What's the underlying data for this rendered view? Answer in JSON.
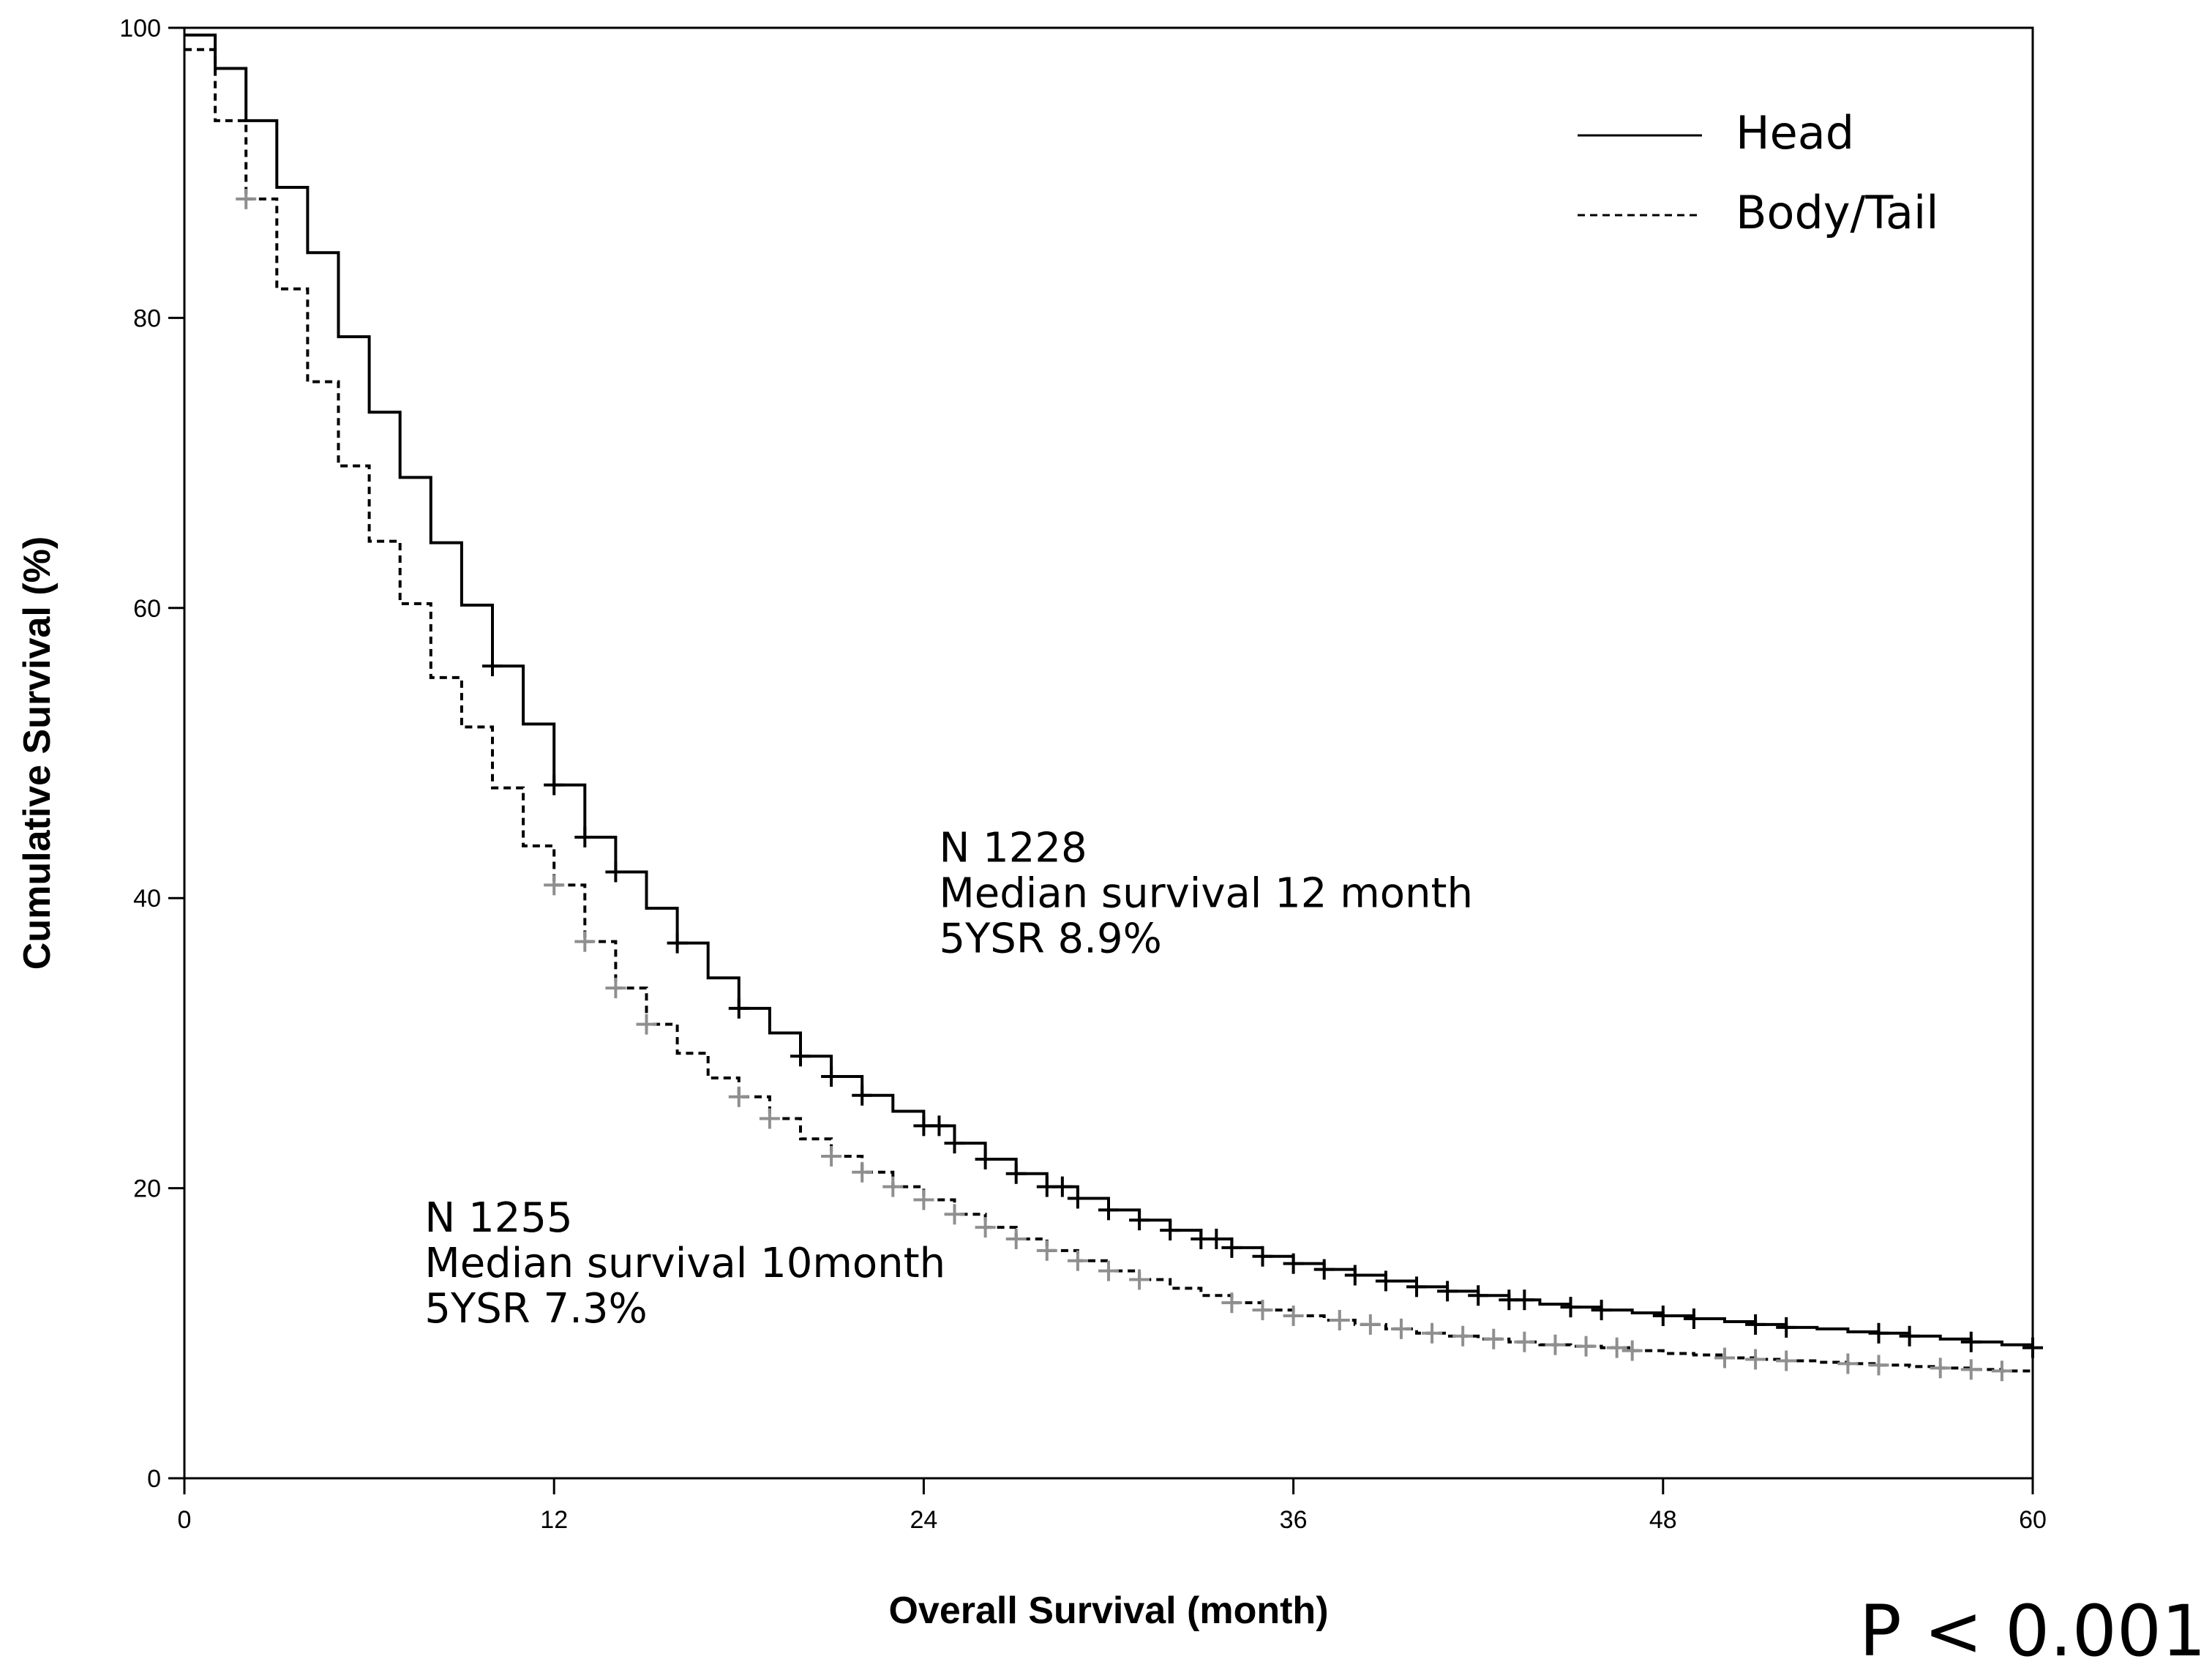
{
  "chart_data": {
    "type": "line",
    "title": "",
    "xlabel": "Overall Survival (month)",
    "ylabel": "Cumulative Survival (%)",
    "xlim": [
      0,
      60
    ],
    "ylim": [
      0,
      100
    ],
    "xticks": [
      "0",
      "12",
      "24",
      "36",
      "48",
      "60"
    ],
    "yticks": [
      "0",
      "20",
      "40",
      "60",
      "80",
      "100"
    ],
    "grid": false,
    "legend_position": "top-right",
    "series": [
      {
        "name": "Head",
        "style": "solid",
        "color": "#000000",
        "censor_color": "#000000",
        "x": [
          0,
          1,
          2,
          3,
          4,
          5,
          6,
          7,
          8,
          9,
          10,
          11,
          12,
          13,
          14,
          15,
          16,
          17,
          18,
          19,
          20,
          21,
          22,
          23,
          24,
          25,
          26,
          27,
          28,
          29,
          30,
          31,
          32,
          33,
          34,
          35,
          36,
          37,
          38,
          39,
          40,
          41,
          42,
          43,
          44,
          45,
          46,
          47,
          48,
          49,
          50,
          51,
          52,
          53,
          54,
          55,
          56,
          57,
          58,
          59,
          60
        ],
        "y": [
          99.5,
          97.2,
          93.6,
          89.0,
          84.5,
          78.7,
          73.5,
          69.0,
          64.5,
          60.2,
          56.0,
          52.0,
          47.8,
          44.2,
          41.8,
          39.3,
          36.9,
          34.5,
          32.4,
          30.7,
          29.1,
          27.7,
          26.4,
          25.3,
          24.3,
          23.1,
          22.0,
          21.0,
          20.1,
          19.3,
          18.5,
          17.8,
          17.1,
          16.5,
          15.9,
          15.3,
          14.8,
          14.4,
          14.0,
          13.6,
          13.2,
          12.9,
          12.6,
          12.3,
          12.0,
          11.8,
          11.6,
          11.4,
          11.2,
          11.0,
          10.8,
          10.6,
          10.4,
          10.3,
          10.1,
          10.0,
          9.8,
          9.6,
          9.4,
          9.2,
          9.0
        ],
        "censor_x": [
          10,
          12,
          13,
          14,
          16,
          18,
          20,
          21,
          22,
          24,
          24.5,
          25,
          26,
          27,
          28,
          28.5,
          29,
          30,
          31,
          32,
          33,
          33.5,
          34,
          35,
          36,
          37,
          38,
          39,
          40,
          41,
          42,
          43,
          43.5,
          45,
          46,
          48,
          49,
          51,
          52,
          55,
          56,
          58,
          60
        ]
      },
      {
        "name": "Body/Tail",
        "style": "dashed",
        "color": "#000000",
        "censor_color": "#8f8f8f",
        "x": [
          0,
          1,
          2,
          3,
          4,
          5,
          6,
          7,
          8,
          9,
          10,
          11,
          12,
          13,
          14,
          15,
          16,
          17,
          18,
          19,
          20,
          21,
          22,
          23,
          24,
          25,
          26,
          27,
          28,
          29,
          30,
          31,
          32,
          33,
          34,
          35,
          36,
          37,
          38,
          39,
          40,
          41,
          42,
          43,
          44,
          45,
          46,
          47,
          48,
          49,
          50,
          51,
          52,
          53,
          54,
          55,
          56,
          57,
          58,
          59,
          60
        ],
        "y": [
          98.5,
          93.6,
          88.2,
          82.0,
          75.6,
          69.8,
          64.6,
          60.3,
          55.2,
          51.8,
          47.6,
          43.6,
          40.9,
          37.0,
          33.8,
          31.3,
          29.3,
          27.6,
          26.3,
          24.8,
          23.4,
          22.2,
          21.1,
          20.1,
          19.2,
          18.2,
          17.3,
          16.5,
          15.7,
          15.0,
          14.3,
          13.7,
          13.1,
          12.6,
          12.1,
          11.6,
          11.2,
          10.9,
          10.6,
          10.3,
          10.0,
          9.8,
          9.6,
          9.4,
          9.2,
          9.1,
          9.0,
          8.8,
          8.6,
          8.5,
          8.3,
          8.2,
          8.1,
          8.0,
          7.9,
          7.8,
          7.7,
          7.6,
          7.5,
          7.4,
          7.3
        ],
        "censor_x": [
          2,
          12,
          13,
          14,
          15,
          18,
          19,
          21,
          22,
          23,
          24,
          25,
          26,
          27,
          28,
          29,
          30,
          31,
          34,
          35,
          36,
          37.5,
          38.5,
          39.5,
          40.5,
          41.5,
          42.5,
          43.5,
          44.5,
          45.5,
          46.5,
          47,
          50,
          51,
          52,
          54,
          55,
          57,
          58,
          59
        ]
      }
    ],
    "annotations": [
      {
        "x": 24.5,
        "y": 42.5,
        "lines": [
          "N 1228",
          "Median survival 12 month",
          "5YSR 8.9%"
        ]
      },
      {
        "x": 7.8,
        "y": 17.0,
        "lines": [
          "N 1255",
          "Median survival 10month",
          "5YSR 7.3%"
        ]
      }
    ],
    "p_value": "P < 0.001"
  }
}
